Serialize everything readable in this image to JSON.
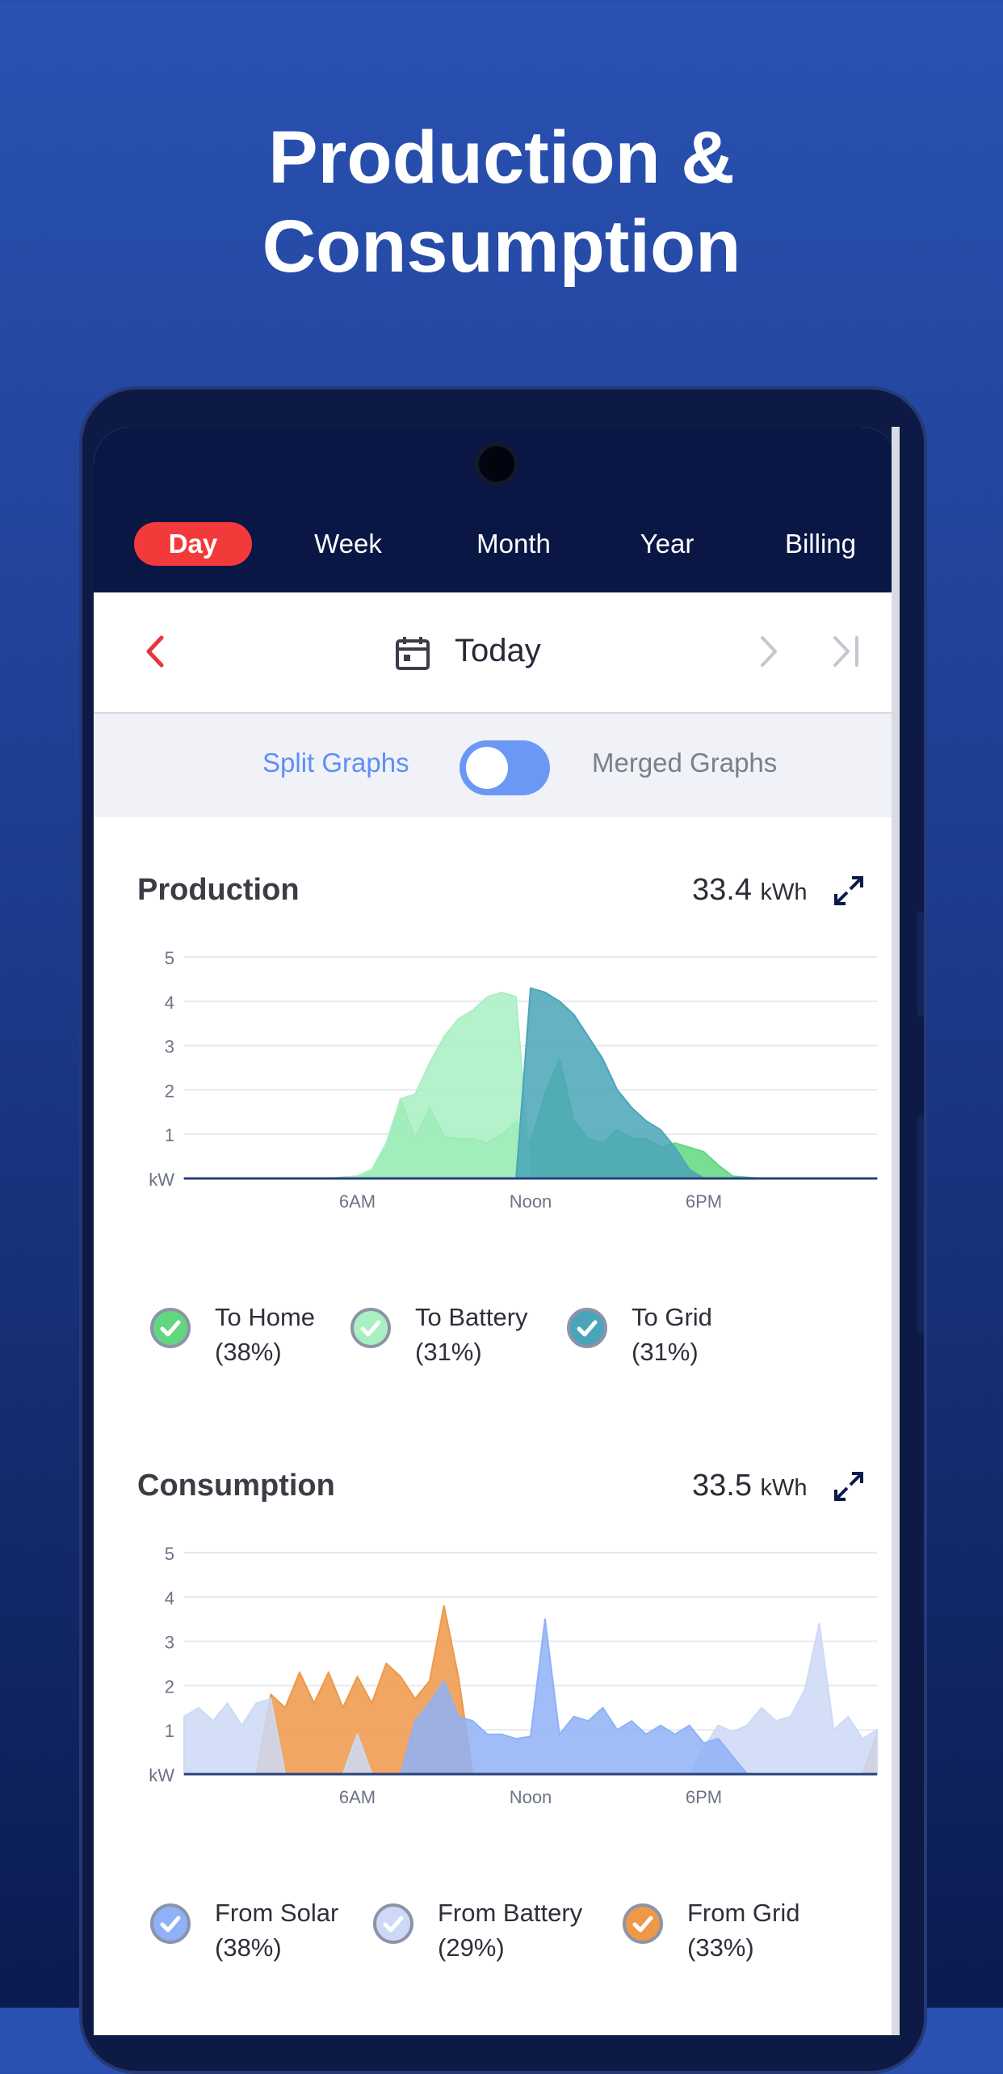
{
  "headline": {
    "line1": "Production &",
    "line2": "Consumption"
  },
  "tabs": [
    {
      "label": "Day",
      "active": true
    },
    {
      "label": "Week",
      "active": false
    },
    {
      "label": "Month",
      "active": false
    },
    {
      "label": "Year",
      "active": false
    },
    {
      "label": "Billing",
      "active": false
    }
  ],
  "date_nav": {
    "label": "Today",
    "prev_icon": "chevron-left-icon",
    "next_icon": "chevron-right-icon",
    "last_icon": "skip-to-end-icon",
    "calendar_icon": "calendar-icon"
  },
  "graph_toggle": {
    "left_label": "Split Graphs",
    "right_label": "Merged Graphs",
    "state": "split"
  },
  "production": {
    "title": "Production",
    "total_value": "33.4",
    "total_unit": "kWh",
    "legend": [
      {
        "label": "To Home",
        "pct": "(38%)",
        "color": "#62d77f"
      },
      {
        "label": "To Battery",
        "pct": "(31%)",
        "color": "#a8f0c2"
      },
      {
        "label": "To Grid",
        "pct": "(31%)",
        "color": "#4aa5b9"
      }
    ]
  },
  "consumption": {
    "title": "Consumption",
    "total_value": "33.5",
    "total_unit": "kWh",
    "legend": [
      {
        "label": "From Solar",
        "pct": "(38%)",
        "color": "#8fb1f7"
      },
      {
        "label": "From Battery",
        "pct": "(29%)",
        "color": "#cdd9f6"
      },
      {
        "label": "From Grid",
        "pct": "(33%)",
        "color": "#ee9848"
      }
    ]
  },
  "chart_data": [
    {
      "type": "area",
      "title": "Production",
      "y_ticks": [
        "kW",
        "1",
        "2",
        "3",
        "4",
        "5"
      ],
      "x_ticks": [
        "6AM",
        "Noon",
        "6PM"
      ],
      "ylim": [
        0,
        5
      ],
      "x_hours": [
        0,
        1,
        2,
        3,
        4,
        5,
        6,
        6.5,
        7,
        7.5,
        8,
        8.5,
        9,
        9.5,
        10,
        10.5,
        11,
        11.5,
        12,
        12.5,
        13,
        13.5,
        14,
        14.5,
        15,
        15.5,
        16,
        16.5,
        17,
        17.5,
        18,
        18.5,
        19,
        20,
        21,
        22,
        23,
        24
      ],
      "series": [
        {
          "name": "To Home",
          "color": "#62d77f",
          "values": [
            0,
            0,
            0,
            0,
            0,
            0,
            0.05,
            0.2,
            0.7,
            1.8,
            0.9,
            1.6,
            0.95,
            0.9,
            0.9,
            0.8,
            1.0,
            1.3,
            0.8,
            1.9,
            2.7,
            1.3,
            0.9,
            0.8,
            1.1,
            0.9,
            0.9,
            0.7,
            0.8,
            0.7,
            0.6,
            0.3,
            0.05,
            0,
            0,
            0,
            0,
            0
          ]
        },
        {
          "name": "To Battery",
          "color": "#a8f0c2",
          "values": [
            0,
            0,
            0,
            0,
            0,
            0,
            0.05,
            0.2,
            0.8,
            1.8,
            1.9,
            2.6,
            3.2,
            3.6,
            3.8,
            4.1,
            4.2,
            4.1,
            0,
            0,
            0,
            0,
            0,
            0,
            0,
            0,
            0,
            0,
            0,
            0,
            0,
            0,
            0,
            0,
            0,
            0,
            0,
            0
          ]
        },
        {
          "name": "To Grid",
          "color": "#4aa5b9",
          "values": [
            0,
            0,
            0,
            0,
            0,
            0,
            0,
            0,
            0,
            0,
            0,
            0,
            0,
            0,
            0,
            0,
            0,
            0,
            4.3,
            4.2,
            4.0,
            3.7,
            3.2,
            2.7,
            2.0,
            1.6,
            1.3,
            1.1,
            0.7,
            0.2,
            0,
            0,
            0,
            0,
            0,
            0,
            0,
            0
          ]
        }
      ]
    },
    {
      "type": "area",
      "title": "Consumption",
      "y_ticks": [
        "kW",
        "1",
        "2",
        "3",
        "4",
        "5"
      ],
      "x_ticks": [
        "6AM",
        "Noon",
        "6PM"
      ],
      "ylim": [
        0,
        5
      ],
      "x_hours": [
        0,
        0.5,
        1,
        1.5,
        2,
        2.5,
        3,
        3.5,
        4,
        4.5,
        5,
        5.5,
        6,
        6.5,
        7,
        7.5,
        8,
        8.5,
        9,
        9.5,
        10,
        10.5,
        11,
        11.5,
        12,
        12.5,
        13,
        13.5,
        14,
        14.5,
        15,
        15.5,
        16,
        16.5,
        17,
        17.5,
        18,
        18.5,
        19,
        19.5,
        20,
        20.5,
        21,
        21.5,
        22,
        22.5,
        23,
        23.5,
        24
      ],
      "series": [
        {
          "name": "From Grid",
          "color": "#ee9848",
          "values": [
            0,
            0,
            0,
            0,
            0,
            0,
            1.8,
            1.5,
            2.3,
            1.6,
            2.3,
            1.5,
            2.2,
            1.6,
            2.5,
            2.2,
            1.7,
            2.1,
            3.8,
            2.2,
            0,
            0,
            0,
            0,
            0,
            0,
            0,
            0,
            0,
            0,
            0,
            0,
            0,
            0,
            0,
            0,
            0,
            0,
            0,
            0,
            0,
            0,
            0,
            0,
            0,
            0,
            0,
            0,
            0.9
          ]
        },
        {
          "name": "From Battery",
          "color": "#cdd9f6",
          "values": [
            1.3,
            1.5,
            1.2,
            1.6,
            1.1,
            1.6,
            1.7,
            0,
            0,
            0,
            0,
            0,
            0.9,
            0,
            0,
            0,
            0,
            0,
            0,
            0,
            0,
            0,
            0,
            0,
            0,
            0,
            0,
            0,
            0,
            0,
            0,
            0,
            0,
            0,
            0,
            0,
            0.6,
            1.1,
            0.95,
            1.1,
            1.5,
            1.2,
            1.3,
            1.9,
            3.4,
            1.0,
            1.3,
            0.8,
            1.0
          ]
        },
        {
          "name": "From Solar",
          "color": "#8fb1f7",
          "values": [
            0,
            0,
            0,
            0,
            0,
            0,
            0,
            0,
            0,
            0,
            0,
            0,
            0,
            0,
            0,
            0,
            1.2,
            1.6,
            2.1,
            1.3,
            1.2,
            0.9,
            0.9,
            0.8,
            0.85,
            3.5,
            0.9,
            1.3,
            1.2,
            1.5,
            1.0,
            1.2,
            0.9,
            1.1,
            0.9,
            1.1,
            0.7,
            0.8,
            0.4,
            0,
            0,
            0,
            0,
            0,
            0,
            0,
            0,
            0,
            0
          ]
        }
      ]
    }
  ]
}
